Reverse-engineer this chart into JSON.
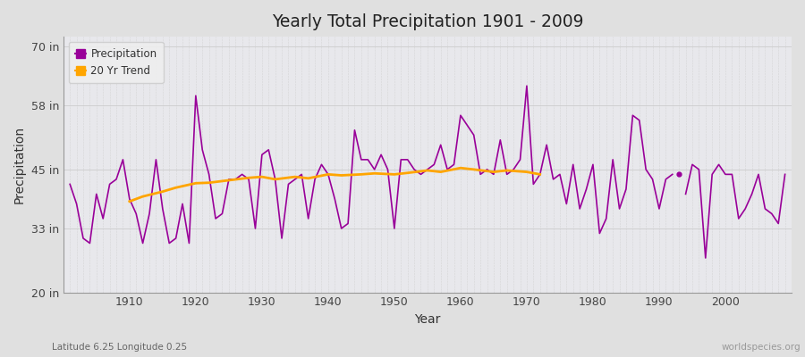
{
  "title": "Yearly Total Precipitation 1901 - 2009",
  "xlabel": "Year",
  "ylabel": "Precipitation",
  "subtitle_left": "Latitude 6.25 Longitude 0.25",
  "subtitle_right": "worldspecies.org",
  "ylim": [
    20,
    72
  ],
  "yticks": [
    20,
    33,
    45,
    58,
    70
  ],
  "ytick_labels": [
    "20 in",
    "33 in",
    "45 in",
    "58 in",
    "70 in"
  ],
  "xlim": [
    1900,
    2010
  ],
  "xticks": [
    1910,
    1920,
    1930,
    1940,
    1950,
    1960,
    1970,
    1980,
    1990,
    2000
  ],
  "precip_color": "#990099",
  "trend_color": "#FFA500",
  "fig_bg_color": "#e0e0e0",
  "plot_bg_color": "#e8e8ec",
  "years": [
    1901,
    1902,
    1903,
    1904,
    1905,
    1906,
    1907,
    1908,
    1909,
    1910,
    1911,
    1912,
    1913,
    1914,
    1915,
    1916,
    1917,
    1918,
    1919,
    1920,
    1921,
    1922,
    1923,
    1924,
    1925,
    1926,
    1927,
    1928,
    1929,
    1930,
    1931,
    1932,
    1933,
    1934,
    1935,
    1936,
    1937,
    1938,
    1939,
    1940,
    1941,
    1942,
    1943,
    1944,
    1945,
    1946,
    1947,
    1948,
    1949,
    1950,
    1951,
    1952,
    1953,
    1954,
    1955,
    1956,
    1957,
    1958,
    1959,
    1960,
    1961,
    1962,
    1963,
    1964,
    1965,
    1966,
    1967,
    1968,
    1969,
    1970,
    1971,
    1972,
    1973,
    1974,
    1975,
    1976,
    1977,
    1978,
    1979,
    1980,
    1981,
    1982,
    1983,
    1984,
    1985,
    1986,
    1987,
    1988,
    1989,
    1990,
    1991,
    1992,
    1994,
    1995,
    1996,
    1997,
    1998,
    1999,
    2000,
    2001,
    2002,
    2003,
    2004,
    2005,
    2006,
    2007,
    2008,
    2009
  ],
  "precip": [
    42,
    38,
    31,
    30,
    40,
    35,
    42,
    43,
    47,
    39,
    36,
    30,
    36,
    47,
    37,
    30,
    31,
    38,
    30,
    60,
    49,
    44,
    35,
    36,
    43,
    43,
    44,
    43,
    33,
    48,
    49,
    43,
    31,
    42,
    43,
    44,
    35,
    43,
    46,
    44,
    39,
    33,
    34,
    53,
    47,
    47,
    45,
    48,
    45,
    33,
    47,
    47,
    45,
    44,
    45,
    46,
    50,
    45,
    46,
    56,
    54,
    52,
    44,
    45,
    44,
    51,
    44,
    45,
    47,
    62,
    42,
    44,
    50,
    43,
    44,
    38,
    46,
    37,
    41,
    46,
    32,
    35,
    47,
    37,
    41,
    56,
    55,
    45,
    43,
    37,
    43,
    44,
    40,
    46,
    45,
    27,
    44,
    46,
    44,
    44,
    35,
    37,
    40,
    44,
    37,
    36,
    34,
    44
  ],
  "isolated_year": 1993,
  "isolated_value": 44,
  "trend_years": [
    1910,
    1912,
    1915,
    1917,
    1920,
    1922,
    1925,
    1928,
    1930,
    1932,
    1935,
    1937,
    1940,
    1942,
    1945,
    1947,
    1950,
    1952,
    1955,
    1957,
    1960,
    1962,
    1965,
    1967,
    1970,
    1972
  ],
  "trend_values": [
    38.5,
    39.5,
    40.5,
    41.3,
    42.2,
    42.3,
    42.8,
    43.3,
    43.5,
    43.0,
    43.5,
    43.2,
    44.0,
    43.8,
    44.0,
    44.2,
    44.0,
    44.3,
    44.8,
    44.5,
    45.3,
    45.0,
    44.5,
    44.8,
    44.5,
    44.0
  ]
}
